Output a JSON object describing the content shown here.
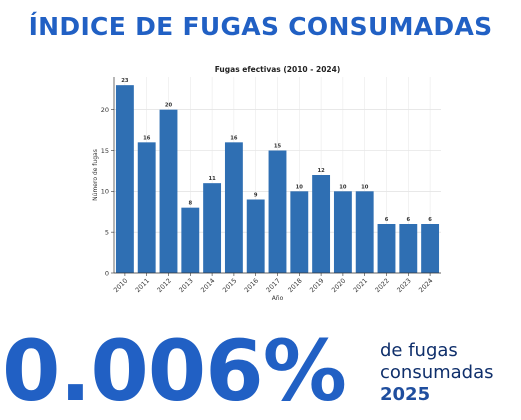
{
  "headline": "ÍNDICE DE FUGAS CONSUMADAS",
  "stat": {
    "value": "0.006%",
    "caption_line1": "de fugas",
    "caption_line2": "consumadas",
    "year": "2025"
  },
  "colors": {
    "accent": "#2160c4",
    "bar": "#2f6fb3",
    "caption": "#0f2f6b"
  },
  "chart_data": {
    "type": "bar",
    "title": "Fugas efectivas (2010 - 2024)",
    "xlabel": "Año",
    "ylabel": "Número de fugas",
    "ylim": [
      0,
      24
    ],
    "yticks": [
      0,
      5,
      10,
      15,
      20
    ],
    "grid": true,
    "categories": [
      "2010",
      "2011",
      "2012",
      "2013",
      "2014",
      "2015",
      "2016",
      "2017",
      "2018",
      "2019",
      "2020",
      "2021",
      "2022",
      "2023",
      "2024"
    ],
    "values": [
      23,
      16,
      20,
      8,
      11,
      16,
      9,
      15,
      10,
      12,
      10,
      10,
      6,
      6,
      6
    ]
  }
}
